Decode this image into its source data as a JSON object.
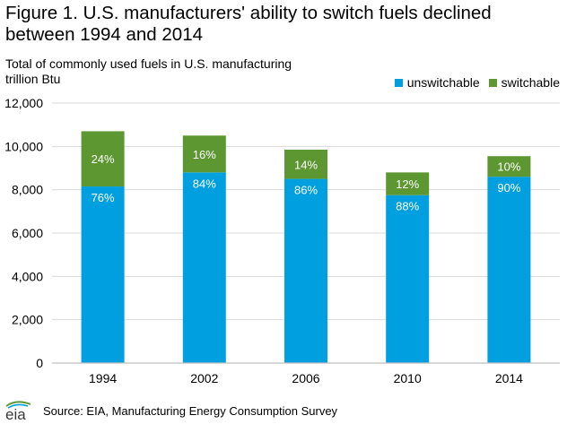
{
  "header": {
    "title_line1": "Figure 1. U.S. manufacturers' ability to switch fuels declined",
    "title_line2": "between 1994 and 2014",
    "subtitle_line1": "Total of commonly used fuels in  U.S. manufacturing",
    "subtitle_line2": "trillion Btu"
  },
  "footer": {
    "logo_text": "eia",
    "source": "Source: EIA, Manufacturing Energy Consumption Survey"
  },
  "colors": {
    "unswitchable": "#00A0E0",
    "switchable": "#5D9732",
    "gridline": "#D9D9D9",
    "axis": "#BFBFBF",
    "label_text": "#FFFFFF"
  },
  "chart_data": {
    "type": "bar",
    "stacked": true,
    "categories": [
      "1994",
      "2002",
      "2006",
      "2010",
      "2014"
    ],
    "series": [
      {
        "name": "unswitchable",
        "values": [
          8150,
          8800,
          8500,
          7750,
          8600
        ],
        "labels": [
          "76%",
          "84%",
          "86%",
          "88%",
          "90%"
        ]
      },
      {
        "name": "switchable",
        "values": [
          2550,
          1700,
          1350,
          1050,
          950
        ],
        "labels": [
          "24%",
          "16%",
          "14%",
          "12%",
          "10%"
        ]
      }
    ],
    "ylim": [
      0,
      12000
    ],
    "yticks": [
      0,
      2000,
      4000,
      6000,
      8000,
      10000,
      12000
    ],
    "ytick_labels": [
      "0",
      "2,000",
      "4,000",
      "6,000",
      "8,000",
      "10,000",
      "12,000"
    ],
    "grid": true,
    "legend_position": "top-right"
  }
}
